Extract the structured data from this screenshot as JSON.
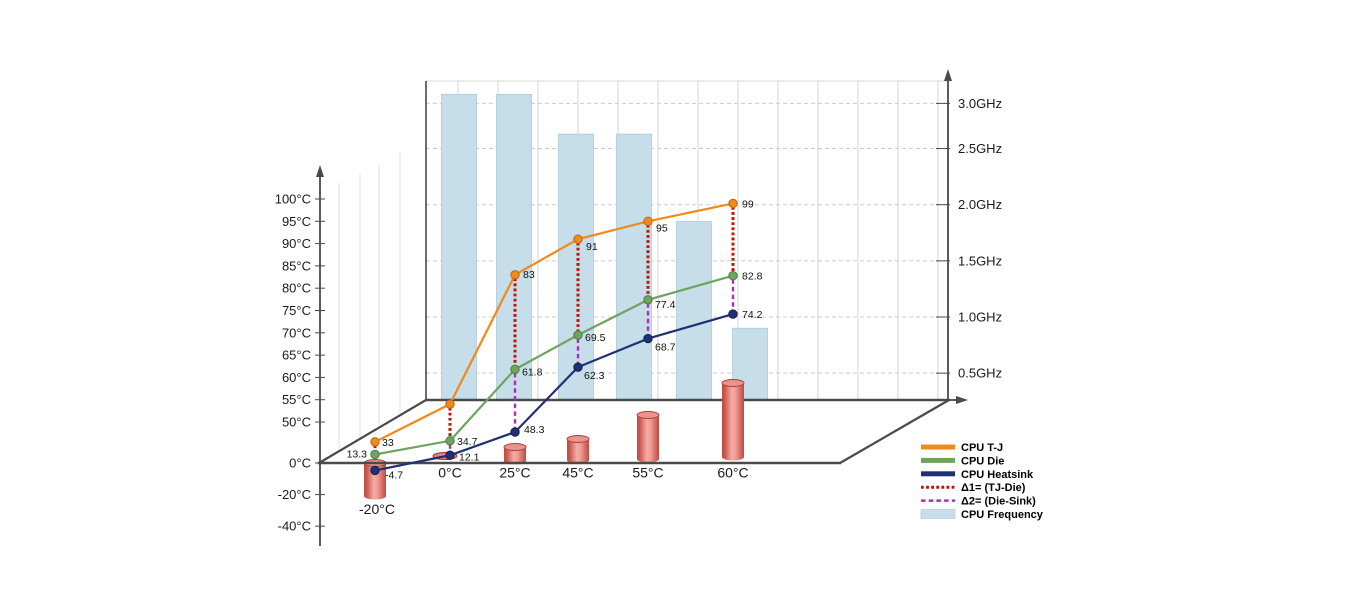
{
  "chart_data": {
    "type": "composite-3d-line-bar",
    "title": "",
    "categories": [
      "-20°C",
      "0°C",
      "25°C",
      "45°C",
      "55°C",
      "60°C"
    ],
    "category_values": [
      -20,
      0,
      25,
      45,
      55,
      60
    ],
    "temperature_series": [
      {
        "name": "CPU T-J",
        "color": "#F08A1D",
        "marker_edge": "#C2650C",
        "values": [
          33,
          54,
          83,
          91,
          95,
          99
        ],
        "labels": [
          "33",
          "",
          "83",
          "91",
          "95",
          "99"
        ]
      },
      {
        "name": "CPU Die",
        "color": "#6FA35F",
        "marker_edge": "#4E7C42",
        "values": [
          13.3,
          34.7,
          61.8,
          69.5,
          77.4,
          82.8
        ],
        "labels": [
          "13.3",
          "34.7",
          "61.8",
          "69.5",
          "77.4",
          "82.8"
        ]
      },
      {
        "name": "CPU Heatsink",
        "color": "#1F3173",
        "marker_edge": "#121F4E",
        "values": [
          -4.7,
          12.1,
          48.3,
          62.3,
          68.7,
          74.2
        ],
        "labels": [
          "-4.7",
          "12.1",
          "48.3",
          "62.3",
          "68.7",
          "74.2"
        ]
      }
    ],
    "deltas": [
      {
        "name": "Δ1= (TJ-Die)",
        "color": "#C41200",
        "style": "dotted",
        "from": 0,
        "to": 1
      },
      {
        "name": "Δ2= (Die-Sink)",
        "color": "#B32BB3",
        "style": "dashed",
        "from": 1,
        "to": 2
      }
    ],
    "frequency_series": {
      "name": "CPU Frequency",
      "color": "#C5DEEA",
      "edge": "#AECADA",
      "values_ghz": [
        3.1,
        3.1,
        2.66,
        2.66,
        1.85,
        0.9
      ]
    },
    "ambient_cylinders": {
      "name": "ambient-temperature-cylinders",
      "values": [
        -20,
        0,
        25,
        45,
        55,
        60
      ]
    },
    "left_axis": {
      "unit": "°C",
      "ticks": [
        "100°C",
        "95°C",
        "90°C",
        "85°C",
        "80°C",
        "75°C",
        "70°C",
        "65°C",
        "60°C",
        "55°C",
        "50°C",
        "0°C",
        "-20°C",
        "-40°C"
      ]
    },
    "right_axis": {
      "unit": "GHz",
      "ticks": [
        "3.0GHz",
        "2.5GHz",
        "2.0GHz",
        "1.5GHz",
        "1.0GHz",
        "0.5GHz"
      ]
    },
    "legend": [
      {
        "label": "CPU T-J",
        "swatch": "line",
        "color": "#F08A1D"
      },
      {
        "label": "CPU Die",
        "swatch": "line",
        "color": "#6FA35F"
      },
      {
        "label": "CPU Heatsink",
        "swatch": "line",
        "color": "#1F3173"
      },
      {
        "label": "Δ1= (TJ-Die)",
        "swatch": "dotted",
        "color": "#C41200"
      },
      {
        "label": "Δ2= (Die-Sink)",
        "swatch": "dashed",
        "color": "#B32BB3"
      },
      {
        "label": "CPU Frequency",
        "swatch": "rect",
        "color": "#C5DEEA"
      }
    ],
    "layout_hints": {
      "grid": true,
      "legend_position": "bottom-right",
      "left_axis_range": [
        -40,
        100
      ],
      "right_axis_range": [
        0,
        3.0
      ]
    }
  }
}
